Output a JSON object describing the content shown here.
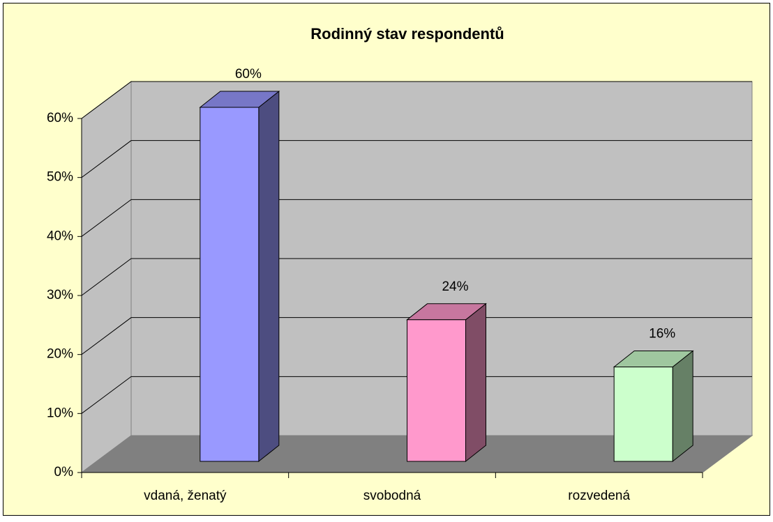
{
  "chart_data": {
    "type": "bar3d",
    "title": "Rodinný stav respondentů",
    "categories": [
      "vdaná, ženatý",
      "svobodná",
      "rozvedená"
    ],
    "values": [
      60,
      24,
      16
    ],
    "value_labels": [
      "60%",
      "24%",
      "16%"
    ],
    "colors": [
      "#9999ff",
      "#ff99cc",
      "#ccffcc"
    ],
    "ylim": [
      0,
      60
    ],
    "yticks": [
      {
        "value": 0,
        "label": "0%"
      },
      {
        "value": 10,
        "label": "10%"
      },
      {
        "value": 20,
        "label": "20%"
      },
      {
        "value": 30,
        "label": "30%"
      },
      {
        "value": 40,
        "label": "40%"
      },
      {
        "value": 50,
        "label": "50%"
      },
      {
        "value": 60,
        "label": "60%"
      }
    ],
    "grid": true
  }
}
